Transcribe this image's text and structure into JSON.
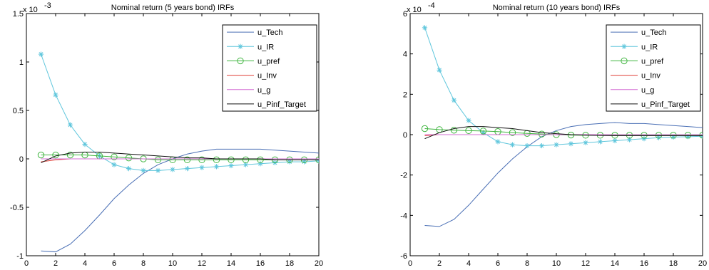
{
  "chart_data": [
    {
      "type": "line",
      "title": "Nominal return (5 years bond) IRFs",
      "exponent_label": "x 10",
      "exponent_power": "-3",
      "scale": 0.001,
      "xlim": [
        0,
        20
      ],
      "ylim": [
        -1.0,
        1.5
      ],
      "xticks": [
        "0",
        "2",
        "4",
        "6",
        "8",
        "10",
        "12",
        "14",
        "16",
        "18",
        "20"
      ],
      "yticks": [
        "-1",
        "-0.5",
        "0",
        "0.5",
        "1",
        "1.5"
      ],
      "x": [
        1,
        2,
        3,
        4,
        5,
        6,
        7,
        8,
        9,
        10,
        11,
        12,
        13,
        14,
        15,
        16,
        17,
        18,
        19,
        20
      ],
      "legend_position": "top-right",
      "series": [
        {
          "name": "u_Tech",
          "color": "#4a6fb5",
          "marker": "none",
          "values": [
            -0.95,
            -0.96,
            -0.88,
            -0.74,
            -0.58,
            -0.41,
            -0.27,
            -0.15,
            -0.06,
            0.0,
            0.05,
            0.08,
            0.1,
            0.1,
            0.1,
            0.1,
            0.09,
            0.08,
            0.07,
            0.06
          ]
        },
        {
          "name": "u_IR",
          "color": "#5fc6dc",
          "marker": "star",
          "values": [
            1.08,
            0.66,
            0.35,
            0.15,
            0.03,
            -0.06,
            -0.1,
            -0.12,
            -0.12,
            -0.11,
            -0.1,
            -0.09,
            -0.08,
            -0.07,
            -0.06,
            -0.05,
            -0.04,
            -0.03,
            -0.03,
            -0.02
          ]
        },
        {
          "name": "u_pref",
          "color": "#3fb53f",
          "marker": "circle",
          "values": [
            0.04,
            0.04,
            0.04,
            0.04,
            0.03,
            0.02,
            0.01,
            0.0,
            -0.01,
            -0.01,
            -0.01,
            -0.01,
            -0.01,
            -0.01,
            -0.01,
            -0.01,
            -0.01,
            -0.01,
            -0.01,
            -0.01
          ]
        },
        {
          "name": "u_Inv",
          "color": "#e0413a",
          "marker": "none",
          "values": [
            -0.03,
            -0.01,
            0.0,
            0.0,
            0.0,
            0.0,
            0.0,
            0.0,
            0.0,
            0.0,
            0.0,
            0.0,
            0.0,
            0.0,
            0.0,
            0.0,
            0.0,
            0.0,
            0.0,
            0.0
          ]
        },
        {
          "name": "u_g",
          "color": "#d36fd3",
          "marker": "none",
          "values": [
            0.0,
            0.0,
            0.0,
            0.0,
            0.0,
            0.0,
            0.0,
            0.0,
            0.0,
            0.0,
            0.0,
            0.0,
            0.0,
            0.0,
            0.0,
            0.0,
            0.0,
            0.0,
            0.0,
            0.0
          ]
        },
        {
          "name": "u_Pinf_Target",
          "color": "#111111",
          "marker": "none",
          "values": [
            -0.04,
            0.03,
            0.06,
            0.07,
            0.07,
            0.06,
            0.05,
            0.04,
            0.03,
            0.02,
            0.01,
            0.01,
            0.0,
            0.0,
            0.0,
            0.0,
            -0.01,
            -0.01,
            -0.01,
            -0.01
          ]
        }
      ]
    },
    {
      "type": "line",
      "title": "Nominal return (10 years bond) IRFs",
      "exponent_label": "x 10",
      "exponent_power": "-4",
      "scale": 0.0001,
      "xlim": [
        0,
        20
      ],
      "ylim": [
        -6,
        6
      ],
      "xticks": [
        "0",
        "2",
        "4",
        "6",
        "8",
        "10",
        "12",
        "14",
        "16",
        "18",
        "20"
      ],
      "yticks": [
        "-6",
        "-4",
        "-2",
        "0",
        "2",
        "4",
        "6"
      ],
      "x": [
        1,
        2,
        3,
        4,
        5,
        6,
        7,
        8,
        9,
        10,
        11,
        12,
        13,
        14,
        15,
        16,
        17,
        18,
        19,
        20
      ],
      "legend_position": "top-right",
      "series": [
        {
          "name": "u_Tech",
          "color": "#4a6fb5",
          "marker": "none",
          "values": [
            -4.5,
            -4.55,
            -4.2,
            -3.5,
            -2.7,
            -1.9,
            -1.2,
            -0.6,
            -0.1,
            0.2,
            0.4,
            0.5,
            0.55,
            0.6,
            0.55,
            0.55,
            0.5,
            0.45,
            0.4,
            0.35
          ]
        },
        {
          "name": "u_IR",
          "color": "#5fc6dc",
          "marker": "star",
          "values": [
            5.3,
            3.2,
            1.7,
            0.7,
            0.1,
            -0.35,
            -0.5,
            -0.55,
            -0.55,
            -0.5,
            -0.45,
            -0.4,
            -0.35,
            -0.3,
            -0.25,
            -0.2,
            -0.15,
            -0.12,
            -0.1,
            -0.08
          ]
        },
        {
          "name": "u_pref",
          "color": "#3fb53f",
          "marker": "circle",
          "values": [
            0.3,
            0.25,
            0.22,
            0.2,
            0.18,
            0.15,
            0.1,
            0.06,
            0.03,
            0.0,
            -0.02,
            -0.03,
            -0.03,
            -0.03,
            -0.03,
            -0.03,
            -0.03,
            -0.03,
            -0.03,
            -0.03
          ]
        },
        {
          "name": "u_Inv",
          "color": "#e0413a",
          "marker": "none",
          "values": [
            -0.05,
            0.0,
            0.0,
            0.0,
            0.0,
            0.0,
            0.0,
            0.0,
            0.0,
            0.0,
            0.0,
            0.0,
            0.0,
            0.0,
            0.0,
            0.0,
            0.0,
            0.0,
            0.0,
            0.0
          ]
        },
        {
          "name": "u_g",
          "color": "#d36fd3",
          "marker": "none",
          "values": [
            0.0,
            0.0,
            0.0,
            0.0,
            0.0,
            0.0,
            0.0,
            0.0,
            0.0,
            0.0,
            0.0,
            0.0,
            0.0,
            0.0,
            0.0,
            0.0,
            0.0,
            0.0,
            0.0,
            0.0
          ]
        },
        {
          "name": "u_Pinf_Target",
          "color": "#111111",
          "marker": "none",
          "values": [
            -0.2,
            0.1,
            0.3,
            0.4,
            0.4,
            0.35,
            0.3,
            0.2,
            0.1,
            0.05,
            0.0,
            -0.02,
            -0.04,
            -0.05,
            -0.05,
            -0.05,
            -0.05,
            -0.05,
            -0.05,
            -0.05
          ]
        }
      ]
    }
  ]
}
